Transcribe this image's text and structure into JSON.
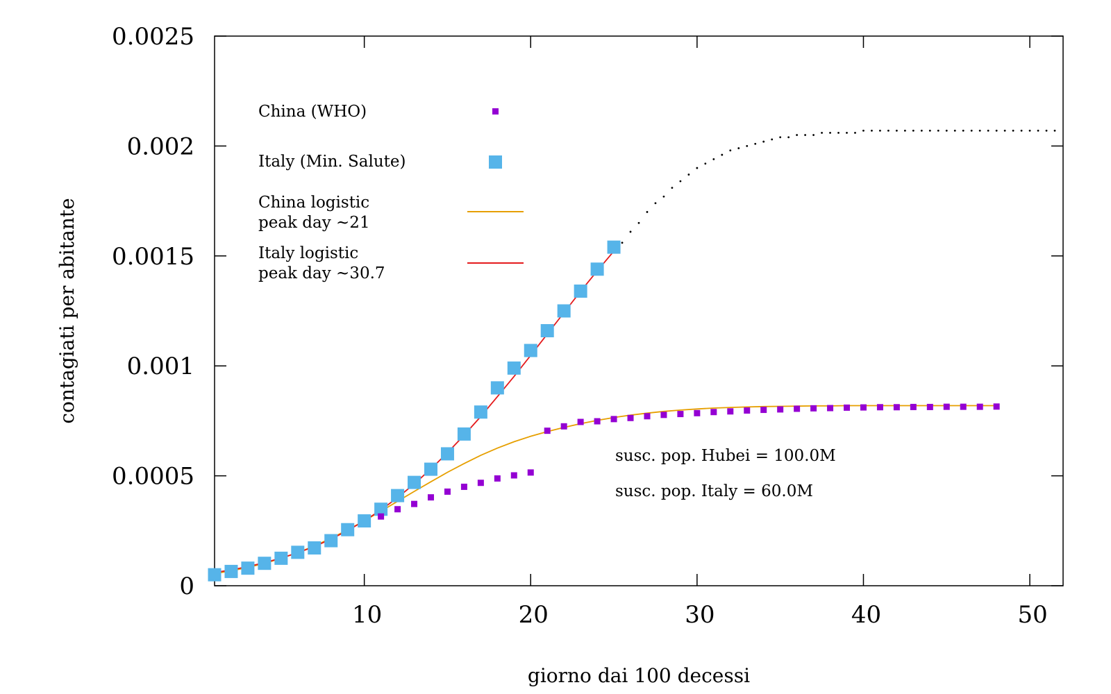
{
  "chart_data": {
    "type": "scatter",
    "xlabel": "giorno dai 100 decessi",
    "ylabel": "contagiati per abitante",
    "xlim": [
      1,
      52
    ],
    "ylim": [
      0,
      0.0025
    ],
    "x_ticks": [
      {
        "value": 10,
        "label": "10"
      },
      {
        "value": 20,
        "label": "20"
      },
      {
        "value": 30,
        "label": "30"
      },
      {
        "value": 40,
        "label": "40"
      },
      {
        "value": 50,
        "label": "50"
      }
    ],
    "y_ticks": [
      {
        "value": 0,
        "label": "0"
      },
      {
        "value": 0.0005,
        "label": "0.0005"
      },
      {
        "value": 0.001,
        "label": "0.001"
      },
      {
        "value": 0.0015,
        "label": "0.0015"
      },
      {
        "value": 0.002,
        "label": "0.002"
      },
      {
        "value": 0.0025,
        "label": "0.0025"
      }
    ],
    "grid": false,
    "legend_position": "top-left",
    "series": [
      {
        "name": "China (WHO)",
        "kind": "points",
        "marker": "small-square",
        "color": "#9400d3",
        "x": [
          11,
          12,
          13,
          14,
          15,
          16,
          17,
          18,
          19,
          20,
          21,
          22,
          23,
          24,
          25,
          26,
          27,
          28,
          29,
          30,
          31,
          32,
          33,
          34,
          35,
          36,
          37,
          38,
          39,
          40,
          41,
          42,
          43,
          44,
          45,
          46,
          47,
          48
        ],
        "y": [
          0.000315,
          0.000348,
          0.000372,
          0.000402,
          0.000428,
          0.00045,
          0.000468,
          0.000488,
          0.000502,
          0.000515,
          0.000705,
          0.000725,
          0.000745,
          0.000748,
          0.000758,
          0.000763,
          0.000771,
          0.000777,
          0.000781,
          0.000785,
          0.00079,
          0.000793,
          0.000797,
          0.0008,
          0.000802,
          0.000805,
          0.000807,
          0.000808,
          0.00081,
          0.000811,
          0.000812,
          0.000812,
          0.000813,
          0.000813,
          0.000814,
          0.000814,
          0.000814,
          0.000815
        ]
      },
      {
        "name": "Italy (Min. Salute)",
        "kind": "points",
        "marker": "large-square",
        "color": "#56b4e9",
        "x": [
          1,
          2,
          3,
          4,
          5,
          6,
          7,
          8,
          9,
          10,
          11,
          12,
          13,
          14,
          15,
          16,
          17,
          18,
          19,
          20,
          21,
          22,
          23,
          24,
          25
        ],
        "y": [
          5e-05,
          6.5e-05,
          8e-05,
          0.000102,
          0.000125,
          0.000152,
          0.000172,
          0.000205,
          0.000255,
          0.000295,
          0.000348,
          0.00041,
          0.00047,
          0.00053,
          0.0006,
          0.00069,
          0.00079,
          0.0009,
          0.00099,
          0.00107,
          0.00116,
          0.00125,
          0.00134,
          0.00144,
          0.00154
        ]
      },
      {
        "name": "China logistic\npeak day ~21",
        "kind": "line",
        "color": "#e69f00",
        "x": [
          1,
          2,
          3,
          4,
          5,
          6,
          7,
          8,
          9,
          10,
          11,
          12,
          13,
          14,
          15,
          16,
          17,
          18,
          19,
          20,
          21,
          22,
          23,
          24,
          25,
          26,
          27,
          28,
          29,
          30,
          31,
          32,
          33,
          34,
          35,
          36,
          37,
          38,
          39,
          40,
          41,
          42,
          43,
          44,
          45,
          46,
          47,
          48
        ],
        "y": [
          5.5e-05,
          6.8e-05,
          8.3e-05,
          0.000102,
          0.000124,
          0.000151,
          0.000181,
          0.000216,
          0.000254,
          0.000295,
          0.000339,
          0.000384,
          0.000429,
          0.000473,
          0.000516,
          0.000556,
          0.000593,
          0.000626,
          0.000655,
          0.00068,
          0.000701,
          0.00072,
          0.000737,
          0.000752,
          0.000765,
          0.000776,
          0.000785,
          0.000793,
          0.000799,
          0.000804,
          0.000808,
          0.000811,
          0.000813,
          0.000815,
          0.000816,
          0.000817,
          0.000818,
          0.000818,
          0.000819,
          0.000819,
          0.000819,
          0.000819,
          0.000819,
          0.000819,
          0.000819,
          0.000819,
          0.000819,
          0.000819
        ]
      },
      {
        "name": "Italy logistic\npeak day ~30.7",
        "kind": "line",
        "color": "#e41a1c",
        "x": [
          1,
          2,
          3,
          4,
          5,
          6,
          7,
          8,
          9,
          10,
          11,
          12,
          13,
          14,
          15,
          16,
          17,
          18,
          19,
          20,
          21,
          22,
          23,
          24,
          25
        ],
        "y": [
          6e-05,
          7.2e-05,
          8.7e-05,
          0.000105,
          0.000126,
          0.00015,
          0.000178,
          0.000212,
          0.000251,
          0.000295,
          0.000345,
          0.000401,
          0.000463,
          0.000531,
          0.000605,
          0.000685,
          0.00077,
          0.00086,
          0.000952,
          0.001048,
          0.001145,
          0.001242,
          0.001339,
          0.001432,
          0.001522
        ]
      },
      {
        "kind": "dotted",
        "color": "#000000",
        "x": [
          25.5,
          26,
          26.5,
          27,
          27.5,
          28,
          28.5,
          29,
          29.5,
          30,
          30.5,
          31,
          31.5,
          32,
          32.5,
          33,
          33.5,
          34,
          34.5,
          35,
          35.5,
          36,
          36.5,
          37,
          37.5,
          38,
          38.5,
          39,
          39.5,
          40,
          40.5,
          41,
          41.5,
          42,
          42.5,
          43,
          43.5,
          44,
          44.5,
          45,
          45.5,
          46,
          46.5,
          47,
          47.5,
          48,
          48.5,
          49,
          49.5,
          50,
          50.5,
          51,
          51.5
        ],
        "y": [
          0.00156,
          0.00161,
          0.00165,
          0.0017,
          0.00174,
          0.00177,
          0.00181,
          0.00184,
          0.00187,
          0.0019,
          0.00192,
          0.00194,
          0.00196,
          0.00198,
          0.00199,
          0.002,
          0.00201,
          0.00202,
          0.00203,
          0.00204,
          0.00204,
          0.00205,
          0.00205,
          0.00205,
          0.00206,
          0.00206,
          0.00206,
          0.00206,
          0.00206,
          0.00207,
          0.00207,
          0.00207,
          0.00207,
          0.00207,
          0.00207,
          0.00207,
          0.00207,
          0.00207,
          0.00207,
          0.00207,
          0.00207,
          0.00207,
          0.00207,
          0.00207,
          0.00207,
          0.00207,
          0.00207,
          0.00207,
          0.00207,
          0.00207,
          0.00207,
          0.00207,
          0.00207
        ]
      }
    ],
    "annotations": [
      {
        "text": "susc. pop. Hubei = 100.0M"
      },
      {
        "text": "susc. pop. Italy = 60.0M"
      }
    ]
  }
}
